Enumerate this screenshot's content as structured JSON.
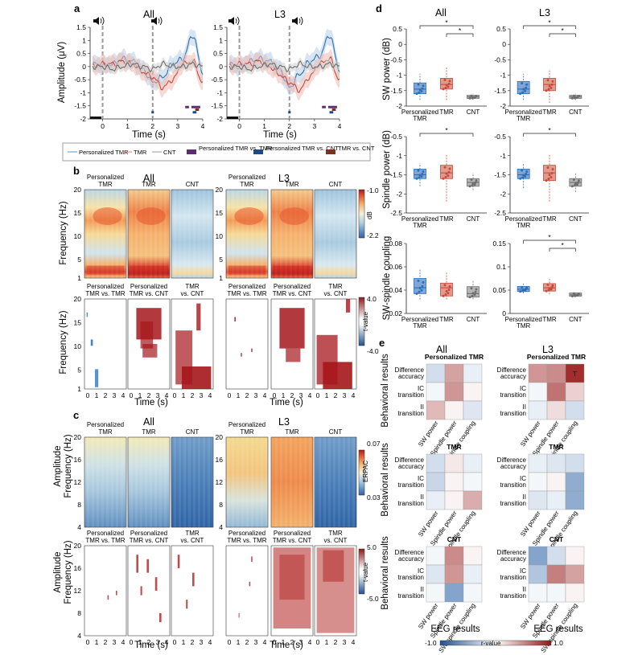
{
  "panel_letters": [
    "a",
    "b",
    "c",
    "d",
    "e"
  ],
  "groups": [
    "All",
    "L3"
  ],
  "conditions": [
    "Personalized TMR",
    "TMR",
    "CNT"
  ],
  "panel_a": {
    "ylabel": "Amplitude (μV)",
    "xlabel": "Time (s)",
    "yticks": [
      "1.5",
      "1",
      "0.5",
      "0",
      "-0.5",
      "-1",
      "-1.5",
      "-2"
    ],
    "xticks": [
      "0",
      "1",
      "2",
      "3",
      "4"
    ],
    "cue_icon": "speaker-icon",
    "legend": [
      "Personalized TMR",
      "TMR",
      "CNT",
      "Personalized TMR vs. TMR",
      "Personalized TMR vs. CNT",
      "TMR vs. CNT"
    ]
  },
  "panel_b": {
    "ylabel": "Frequency (Hz)",
    "xlabel": "Time (s)",
    "yticks": [
      "20",
      "15",
      "10",
      "5",
      "1"
    ],
    "yticks_t": [
      "20",
      "15",
      "10",
      "5",
      "1"
    ],
    "xticks": [
      "0",
      "1",
      "2",
      "3",
      "4"
    ],
    "colorbar_top": {
      "max": "-1.0",
      "min": "-2.2",
      "unit": "dB"
    },
    "colorbar_bottom": {
      "max": "4.0",
      "min": "-4.0",
      "unit": "t-value"
    },
    "contrasts": [
      "Personalized TMR vs. TMR",
      "Personalized TMR vs. CNT",
      "TMR vs. CNT"
    ]
  },
  "panel_c": {
    "ylabel1": "Amplitude",
    "ylabel2": "Frequency (Hz)",
    "xlabel": "Time (s)",
    "yticks": [
      "20",
      "16",
      "12",
      "8",
      "4"
    ],
    "xticks": [
      "0",
      "1",
      "2",
      "3",
      "4"
    ],
    "colorbar_top": {
      "max": "0.07",
      "min": "0.03",
      "unit": "ERPAC"
    },
    "colorbar_bottom": {
      "max": "5.0",
      "min": "-5.0",
      "unit": "t-value"
    },
    "contrasts": [
      "Personalized TMR vs. TMR",
      "Personalized TMR vs. CNT",
      "TMR vs. CNT"
    ]
  },
  "panel_d": {
    "row_labels": [
      "SW power (dB)",
      "Spindle power (dB)",
      "SW-spindle coupling"
    ],
    "x_categories": [
      "Personalized TMR",
      "TMR",
      "CNT"
    ],
    "sig": "*"
  },
  "panel_e": {
    "row_titles": [
      "Personalized TMR",
      "TMR",
      "CNT"
    ],
    "ylabel": "Behavioral results",
    "xlabel": "EEG results",
    "rows": [
      "Difference accuracy",
      "IC transition",
      "II transition"
    ],
    "cols": [
      "SW power",
      "Spindle power",
      "SW-spindle coupling"
    ],
    "colorbar": {
      "min": "-1.0",
      "max": "1.0",
      "unit": "r-value"
    },
    "marker": "T"
  },
  "colors": {
    "ptmr": "#2c6fb6",
    "tmr": "#c8493a",
    "cnt": "#6e6e6e",
    "sig_ptmr_tmr": "#5b2d6e",
    "sig_ptmr_cnt": "#1e4a8a",
    "sig_tmr_cnt": "#7e2f22"
  },
  "chart_data": [
    {
      "type": "line",
      "panel": "a",
      "group": "All",
      "x": [
        -0.4,
        0,
        0.4,
        0.8,
        1.2,
        1.6,
        2,
        2.4,
        2.8,
        3.2,
        3.6,
        4
      ],
      "series": [
        {
          "name": "Personalized TMR",
          "values": [
            0.1,
            0.05,
            0.1,
            0.3,
            0.2,
            -0.1,
            -0.6,
            -0.4,
            0.1,
            0.3,
            1.2,
            -0.2
          ]
        },
        {
          "name": "TMR",
          "values": [
            0,
            0.1,
            0.1,
            0.2,
            0.1,
            -0.2,
            -0.4,
            -0.8,
            -0.5,
            0.1,
            0.2,
            -0.6
          ]
        },
        {
          "name": "CNT",
          "values": [
            0,
            0,
            -0.1,
            0,
            0.1,
            0,
            -0.1,
            0.1,
            0,
            0,
            0.1,
            0
          ]
        }
      ],
      "xlabel": "Time (s)",
      "ylabel": "Amplitude (μV)",
      "xlim": [
        -0.5,
        4
      ],
      "ylim": [
        -2,
        1.5
      ]
    },
    {
      "type": "line",
      "panel": "a",
      "group": "L3",
      "x": [
        -0.4,
        0,
        0.4,
        0.8,
        1.2,
        1.6,
        2,
        2.4,
        2.8,
        3.2,
        3.6,
        4
      ],
      "series": [
        {
          "name": "Personalized TMR",
          "values": [
            0.1,
            0,
            0.2,
            0.3,
            0.2,
            -0.1,
            -0.8,
            -0.3,
            0.2,
            0.4,
            1.2,
            -0.1
          ]
        },
        {
          "name": "TMR",
          "values": [
            0,
            0.1,
            0.1,
            0.2,
            0,
            -0.3,
            -0.6,
            -0.9,
            -0.4,
            0.1,
            0.3,
            -0.5
          ]
        },
        {
          "name": "CNT",
          "values": [
            0,
            0,
            -0.1,
            0,
            0.1,
            0,
            -0.1,
            0.1,
            0,
            0,
            0.1,
            0
          ]
        }
      ],
      "xlabel": "Time (s)",
      "ylabel": "Amplitude (μV)",
      "xlim": [
        -0.5,
        4
      ],
      "ylim": [
        -2,
        1.5
      ]
    },
    {
      "type": "heatmap",
      "panel": "b",
      "group": "All/L3",
      "description_values": "dB power, spindle band (12-16 Hz) elevated 0.5-3.5 s; TMR shows strongest broad increase",
      "xlim": [
        -0.5,
        4
      ],
      "ylim": [
        1,
        20
      ],
      "clim": [
        -2.2,
        -1.0
      ]
    },
    {
      "type": "heatmap",
      "panel": "c",
      "group": "All/L3",
      "xlim": [
        -0.5,
        4
      ],
      "ylim": [
        4,
        20
      ],
      "clim": [
        0.03,
        0.07
      ]
    },
    {
      "type": "box",
      "panel": "d",
      "group": "All",
      "metric": "SW power (dB)",
      "categories": [
        "Personalized TMR",
        "TMR",
        "CNT"
      ],
      "medians": [
        -1.45,
        -1.3,
        -1.7
      ],
      "q1": [
        -1.6,
        -1.45,
        -1.75
      ],
      "q3": [
        -1.25,
        -1.1,
        -1.65
      ],
      "whisker_low": [
        -1.8,
        -1.8,
        -1.8
      ],
      "whisker_high": [
        -0.95,
        -0.75,
        -1.6
      ],
      "ylim": [
        -2,
        0.5
      ],
      "yticks": [
        "0.5",
        "0",
        "-0.5",
        "-1",
        "-1.5",
        "-2"
      ]
    },
    {
      "type": "box",
      "panel": "d",
      "group": "L3",
      "metric": "SW power (dB)",
      "categories": [
        "Personalized TMR",
        "TMR",
        "CNT"
      ],
      "medians": [
        -1.45,
        -1.3,
        -1.7
      ],
      "q1": [
        -1.6,
        -1.5,
        -1.75
      ],
      "q3": [
        -1.2,
        -1.1,
        -1.65
      ],
      "whisker_low": [
        -1.8,
        -1.9,
        -1.8
      ],
      "whisker_high": [
        -0.95,
        -0.8,
        -1.6
      ],
      "ylim": [
        -2,
        0.5
      ],
      "yticks": [
        "0.5",
        "0",
        "-0.5",
        "-1",
        "-1.5",
        "-2"
      ]
    },
    {
      "type": "box",
      "panel": "d",
      "group": "All",
      "metric": "Spindle power (dB)",
      "categories": [
        "Personalized TMR",
        "TMR",
        "CNT"
      ],
      "medians": [
        -1.5,
        -1.45,
        -1.7
      ],
      "q1": [
        -1.6,
        -1.6,
        -1.8
      ],
      "q3": [
        -1.35,
        -1.25,
        -1.6
      ],
      "whisker_low": [
        -1.8,
        -2.2,
        -1.9
      ],
      "whisker_high": [
        -1.2,
        -0.95,
        -1.45
      ],
      "ylim": [
        -2.5,
        -0.5
      ],
      "yticks": [
        "-0.5",
        "-1",
        "-1.5",
        "-2",
        "-2.5"
      ]
    },
    {
      "type": "box",
      "panel": "d",
      "group": "L3",
      "metric": "Spindle power (dB)",
      "categories": [
        "Personalized TMR",
        "TMR",
        "CNT"
      ],
      "medians": [
        -1.5,
        -1.45,
        -1.7
      ],
      "q1": [
        -1.6,
        -1.65,
        -1.8
      ],
      "q3": [
        -1.35,
        -1.25,
        -1.6
      ],
      "whisker_low": [
        -1.85,
        -2.2,
        -1.95
      ],
      "whisker_high": [
        -1.2,
        -0.95,
        -1.45
      ],
      "ylim": [
        -2.5,
        -0.5
      ],
      "yticks": [
        "-0.5",
        "-1",
        "-1.5",
        "-2",
        "-2.5"
      ]
    },
    {
      "type": "box",
      "panel": "d",
      "group": "All",
      "metric": "SW-spindle coupling",
      "categories": [
        "Personalized TMR",
        "TMR",
        "CNT"
      ],
      "medians": [
        0.042,
        0.042,
        0.037
      ],
      "q1": [
        0.037,
        0.035,
        0.034
      ],
      "q3": [
        0.05,
        0.046,
        0.043
      ],
      "whisker_low": [
        0.032,
        0.032,
        0.032
      ],
      "whisker_high": [
        0.058,
        0.055,
        0.048
      ],
      "ylim": [
        0.02,
        0.08
      ],
      "yticks": [
        "0.08",
        "0.06",
        "0.04",
        "0.02"
      ]
    },
    {
      "type": "box",
      "panel": "d",
      "group": "L3",
      "metric": "SW-spindle coupling",
      "categories": [
        "Personalized TMR",
        "TMR",
        "CNT"
      ],
      "medians": [
        0.052,
        0.055,
        0.04
      ],
      "q1": [
        0.047,
        0.048,
        0.037
      ],
      "q3": [
        0.058,
        0.064,
        0.044
      ],
      "whisker_low": [
        0.043,
        0.041,
        0.035
      ],
      "whisker_high": [
        0.064,
        0.076,
        0.046
      ],
      "ylim": [
        0,
        0.15
      ],
      "yticks": [
        "0.15",
        "0.1",
        "0.05",
        "0"
      ]
    },
    {
      "type": "heatmap",
      "panel": "e",
      "metric": "r-value",
      "clim": [
        -1,
        1
      ],
      "rows": [
        "Difference accuracy",
        "IC transition",
        "II transition"
      ],
      "cols": [
        "SW power",
        "Spindle power",
        "SW-spindle coupling"
      ],
      "matrices": {
        "All": {
          "Personalized TMR": [
            [
              -0.2,
              0.4,
              -0.1
            ],
            [
              -0.05,
              0.45,
              0.05
            ],
            [
              0.3,
              0.05,
              -0.15
            ]
          ],
          "TMR": [
            [
              -0.2,
              0.1,
              -0.1
            ],
            [
              -0.25,
              0.05,
              -0.05
            ],
            [
              -0.1,
              0.05,
              0.35
            ]
          ],
          "CNT": [
            [
              -0.05,
              0.5,
              0.05
            ],
            [
              -0.15,
              0.45,
              -0.1
            ],
            [
              -0.05,
              -0.55,
              -0.05
            ]
          ]
        },
        "L3": {
          "Personalized TMR": [
            [
              0.45,
              0.5,
              0.9
            ],
            [
              -0.05,
              0.6,
              0.2
            ],
            [
              -0.1,
              0.15,
              -0.2
            ]
          ],
          "TMR": [
            [
              -0.1,
              -0.15,
              -0.2
            ],
            [
              -0.05,
              0.05,
              -0.5
            ],
            [
              -0.15,
              -0.1,
              -0.5
            ]
          ],
          "CNT": [
            [
              -0.55,
              -0.2,
              0.05
            ],
            [
              -0.35,
              0.55,
              0.4
            ],
            [
              -0.05,
              -0.05,
              0.05
            ]
          ]
        }
      }
    }
  ]
}
